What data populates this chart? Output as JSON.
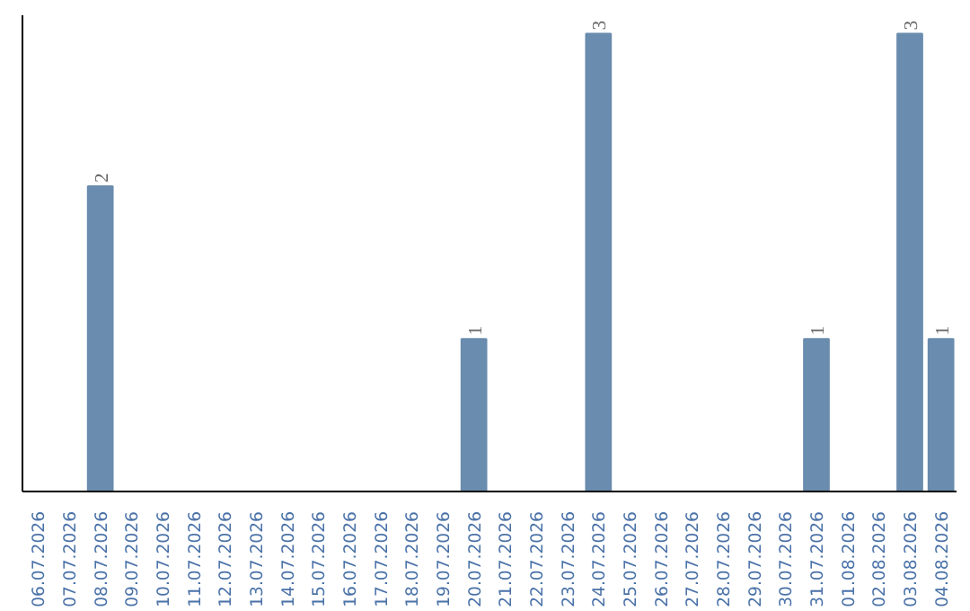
{
  "chart_data": {
    "type": "bar",
    "categories": [
      "06.07.2026",
      "07.07.2026",
      "08.07.2026",
      "09.07.2026",
      "10.07.2026",
      "11.07.2026",
      "12.07.2026",
      "13.07.2026",
      "14.07.2026",
      "15.07.2026",
      "16.07.2026",
      "17.07.2026",
      "18.07.2026",
      "19.07.2026",
      "20.07.2026",
      "21.07.2026",
      "22.07.2026",
      "23.07.2026",
      "24.07.2026",
      "25.07.2026",
      "26.07.2026",
      "27.07.2026",
      "28.07.2026",
      "29.07.2026",
      "30.07.2026",
      "31.07.2026",
      "01.08.2026",
      "02.08.2026",
      "03.08.2026",
      "04.08.2026"
    ],
    "values": [
      0,
      0,
      2,
      0,
      0,
      0,
      0,
      0,
      0,
      0,
      0,
      0,
      0,
      0,
      1,
      0,
      0,
      0,
      3,
      0,
      0,
      0,
      0,
      0,
      0,
      1,
      0,
      0,
      3,
      1
    ],
    "value_labels": [
      null,
      null,
      "2",
      null,
      null,
      null,
      null,
      null,
      null,
      null,
      null,
      null,
      null,
      null,
      "1",
      null,
      null,
      null,
      "3",
      null,
      null,
      null,
      null,
      null,
      null,
      "1",
      null,
      null,
      "3",
      "1"
    ],
    "color": "#6a8cae",
    "grid": false
  }
}
